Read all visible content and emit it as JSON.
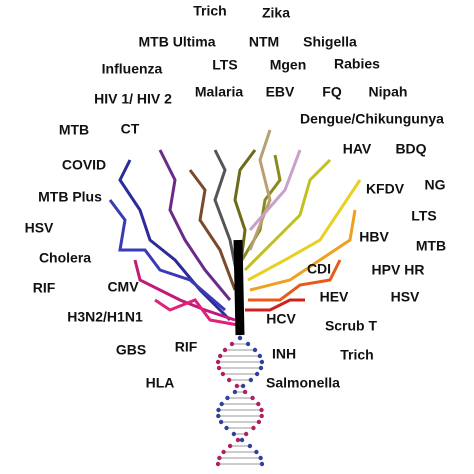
{
  "labels": [
    "Trich",
    "Zika",
    "MTB Ultima",
    "NTM",
    "Shigella",
    "Influenza",
    "LTS",
    "Mgen",
    "Rabies",
    "HIV 1/ HIV 2",
    "Malaria",
    "EBV",
    "FQ",
    "Nipah",
    "MTB",
    "CT",
    "Dengue/Chikungunya",
    "COVID",
    "HAV",
    "BDQ",
    "NG",
    "KFDV",
    "MTB Plus",
    "LTS",
    "HSV",
    "HBV",
    "MTB",
    "Cholera",
    "CDI",
    "HPV HR",
    "RIF",
    "CMV",
    "HEV",
    "HSV",
    "H3N2/H1N1",
    "HCV",
    "Scrub T",
    "GBS",
    "RIF",
    "INH",
    "Trich",
    "HLA",
    "Salmonella"
  ]
}
